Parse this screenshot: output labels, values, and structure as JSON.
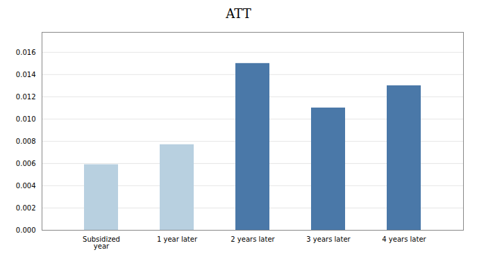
{
  "chart_data": {
    "type": "bar",
    "title": "ATT",
    "categories": [
      "Subsidized\nyear",
      "1 year later",
      "2 years later",
      "3 years later",
      "4 years later"
    ],
    "values": [
      0.0059,
      0.0077,
      0.015,
      0.011,
      0.013
    ],
    "colors": [
      "#b8d0e0",
      "#b8d0e0",
      "#4a78a8",
      "#4a78a8",
      "#4a78a8"
    ],
    "ylim": [
      0,
      0.0178
    ],
    "yticks": [
      {
        "value": 0.0,
        "label": "0.000"
      },
      {
        "value": 0.002,
        "label": "0.002"
      },
      {
        "value": 0.004,
        "label": "0.004"
      },
      {
        "value": 0.006,
        "label": "0.006"
      },
      {
        "value": 0.008,
        "label": "0.008"
      },
      {
        "value": 0.01,
        "label": "0.010"
      },
      {
        "value": 0.012,
        "label": "0.012"
      },
      {
        "value": 0.014,
        "label": "0.014"
      },
      {
        "value": 0.016,
        "label": "0.016"
      }
    ],
    "grid": true
  }
}
